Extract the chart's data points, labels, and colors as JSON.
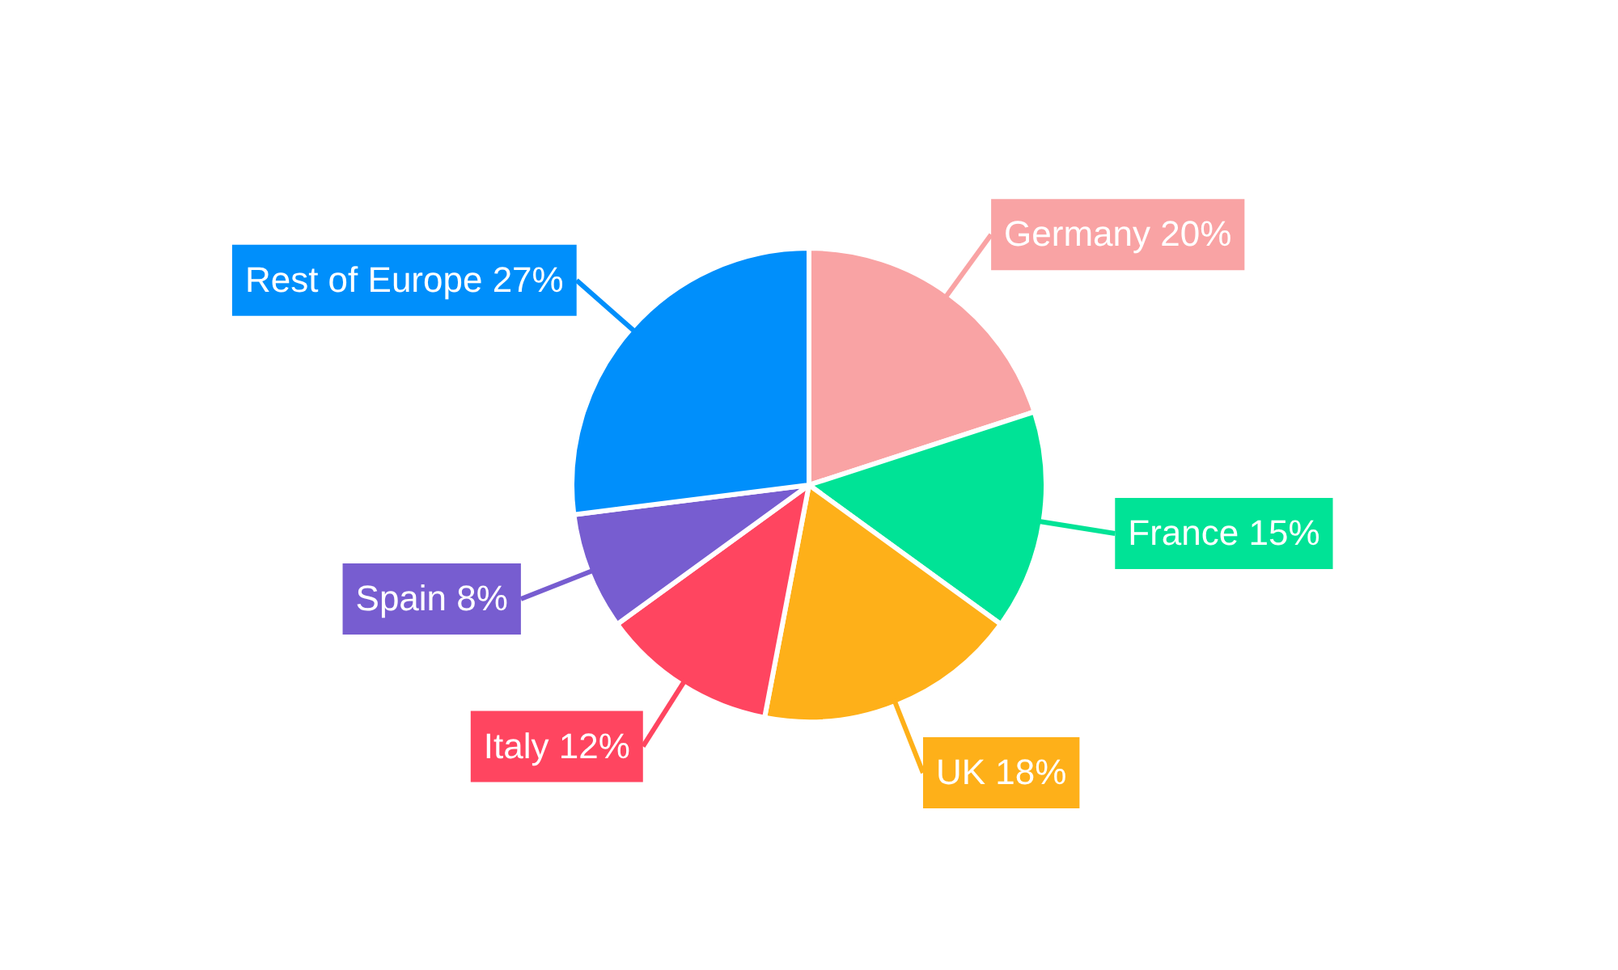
{
  "chart_data": {
    "type": "pie",
    "categories": [
      "Germany",
      "France",
      "UK",
      "Italy",
      "Spain",
      "Rest of Europe"
    ],
    "values": [
      20,
      15,
      18,
      12,
      8,
      27
    ],
    "value_labels": [
      "20%",
      "15%",
      "18%",
      "12%",
      "8%",
      "27%"
    ],
    "colors": [
      "#f9a3a4",
      "#00e396",
      "#feb019",
      "#ff4560",
      "#775dd0",
      "#008ffb"
    ],
    "legend": false
  }
}
